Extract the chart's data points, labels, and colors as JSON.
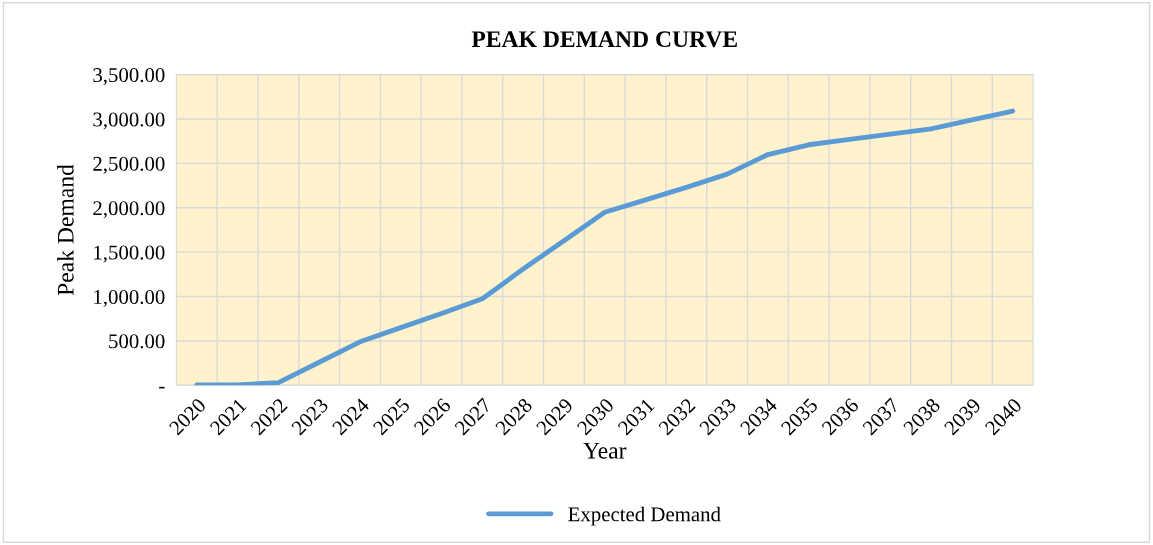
{
  "chart_data": {
    "type": "line",
    "title": "PEAK DEMAND CURVE",
    "xlabel": "Year",
    "ylabel": "Peak Demand",
    "categories": [
      "2020",
      "2021",
      "2022",
      "2023",
      "2024",
      "2025",
      "2026",
      "2027",
      "2028",
      "2029",
      "2030",
      "2031",
      "2032",
      "2033",
      "2034",
      "2035",
      "2036",
      "2037",
      "2038",
      "2039",
      "2040"
    ],
    "series": [
      {
        "name": "Expected Demand",
        "color": "#5b9bd5",
        "values": [
          5,
          5,
          30,
          260,
          490,
          650,
          810,
          975,
          1310,
          1630,
          1950,
          2090,
          2230,
          2380,
          2600,
          2710,
          2770,
          2830,
          2890,
          2990,
          3090
        ]
      }
    ],
    "ylim": [
      0,
      3500
    ],
    "yticks": [
      {
        "value": 0,
        "label": "-"
      },
      {
        "value": 500,
        "label": "500.00"
      },
      {
        "value": 1000,
        "label": "1,000.00"
      },
      {
        "value": 1500,
        "label": "1,500.00"
      },
      {
        "value": 2000,
        "label": "2,000.00"
      },
      {
        "value": 2500,
        "label": "2,500.00"
      },
      {
        "value": 3000,
        "label": "3,000.00"
      },
      {
        "value": 3500,
        "label": "3,500.00"
      }
    ],
    "grid": true,
    "legend": "bottom",
    "marker": "none",
    "line_style": "solid"
  }
}
